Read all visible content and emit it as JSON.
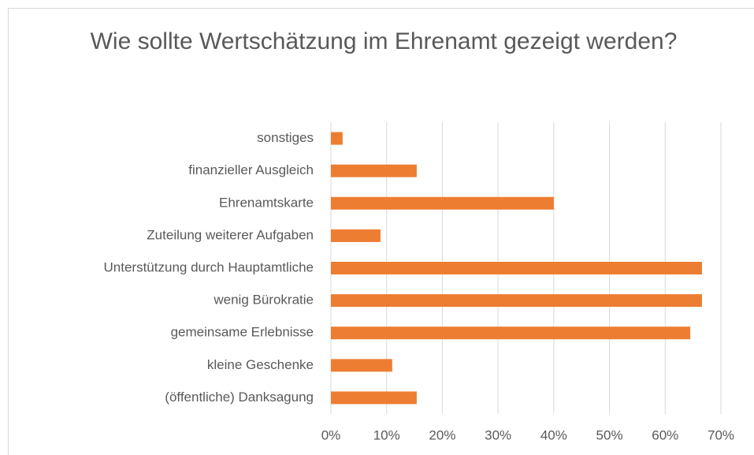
{
  "chart_data": {
    "type": "bar",
    "orientation": "horizontal",
    "title": "Wie sollte Wertschätzung im Ehrenamt gezeigt werden?",
    "categories": [
      "sonstiges",
      "finanzieller Ausgleich",
      "Ehrenamtskarte",
      "Zuteilung weiterer Aufgaben",
      "Unterstützung durch Hauptamtliche",
      "wenig Bürokratie",
      "gemeinsame Erlebnisse",
      "kleine Geschenke",
      "(öffentliche) Danksagung"
    ],
    "values": [
      2.1,
      15.4,
      40,
      8.9,
      66.6,
      66.6,
      64.5,
      11,
      15.4
    ],
    "color": "#ed7d31",
    "xlim": [
      0,
      70
    ],
    "xticks": [
      {
        "value": 0,
        "label": "0%"
      },
      {
        "value": 10,
        "label": "10%"
      },
      {
        "value": 20,
        "label": "20%"
      },
      {
        "value": 30,
        "label": "30%"
      },
      {
        "value": 40,
        "label": "40%"
      },
      {
        "value": 50,
        "label": "50%"
      },
      {
        "value": 60,
        "label": "60%"
      },
      {
        "value": 70,
        "label": "70%"
      }
    ],
    "grid": true
  }
}
